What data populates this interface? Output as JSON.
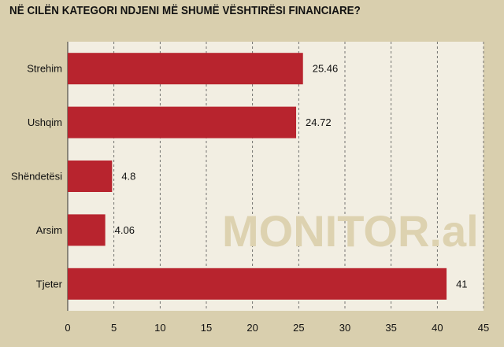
{
  "chart_data": {
    "type": "bar",
    "orientation": "horizontal",
    "title": "NË CILËN KATEGORI NDJENI MË SHUMË VËSHTIRËSI FINANCIARE?",
    "categories": [
      "Strehim",
      "Ushqim",
      "Shëndetësi",
      "Arsim",
      "Tjeter"
    ],
    "values": [
      25.46,
      24.72,
      4.8,
      4.06,
      41
    ],
    "value_labels": [
      "25.46",
      "24.72",
      "4.8",
      "4.06",
      "41"
    ],
    "xlim": [
      0,
      45
    ],
    "xticks": [
      0,
      5,
      10,
      15,
      20,
      25,
      30,
      35,
      40,
      45
    ],
    "grid": "vertical dashed",
    "bar_color": "#b8242e",
    "plot_background": "#f2eee2",
    "watermark": "MONITOR.al"
  }
}
